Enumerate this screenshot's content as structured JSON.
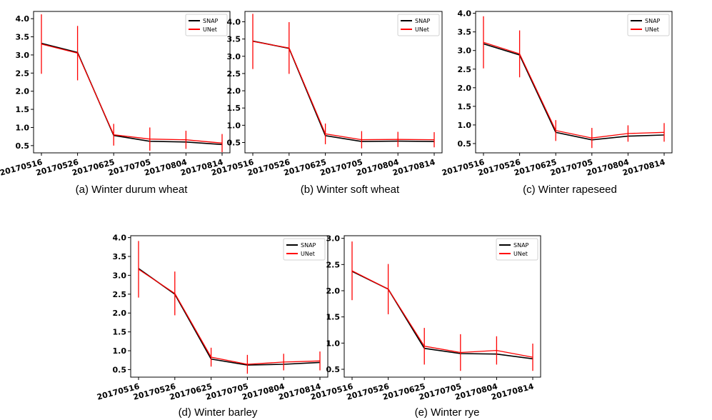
{
  "colors": {
    "snap": "#000000",
    "unet": "#ff0000"
  },
  "legend_labels": [
    "SNAP",
    "UNet"
  ],
  "chart_data": [
    {
      "type": "line",
      "caption": "(a) Winter durum wheat",
      "x": [
        "20170516",
        "20170526",
        "20170625",
        "20170705",
        "20170804",
        "20170814"
      ],
      "ylim": [
        0.3,
        4.2
      ],
      "yticks": [
        "0.5",
        "1.0",
        "1.5",
        "2.0",
        "2.5",
        "3.0",
        "3.5",
        "4.0"
      ],
      "legend": "top-right",
      "series": [
        {
          "name": "SNAP",
          "values": [
            3.32,
            3.07,
            0.78,
            0.62,
            0.6,
            0.53
          ]
        },
        {
          "name": "UNet",
          "values": [
            3.3,
            3.05,
            0.8,
            0.68,
            0.66,
            0.57
          ],
          "error": [
            0.82,
            0.75,
            0.3,
            0.32,
            0.25,
            0.25
          ]
        }
      ]
    },
    {
      "type": "line",
      "caption": "(b) Winter soft wheat",
      "x": [
        "20170516",
        "20170526",
        "20170625",
        "20170705",
        "20170804",
        "20170814"
      ],
      "ylim": [
        0.2,
        4.3
      ],
      "yticks": [
        "0.5",
        "1.0",
        "1.5",
        "2.0",
        "2.5",
        "3.0",
        "3.5",
        "4.0"
      ],
      "legend": "top-right",
      "series": [
        {
          "name": "SNAP",
          "values": [
            3.44,
            3.23,
            0.7,
            0.53,
            0.54,
            0.53
          ]
        },
        {
          "name": "UNet",
          "values": [
            3.43,
            3.24,
            0.75,
            0.58,
            0.59,
            0.58
          ],
          "error": [
            0.8,
            0.75,
            0.3,
            0.25,
            0.22,
            0.22
          ]
        }
      ]
    },
    {
      "type": "line",
      "caption": "(c) Winter rapeseed",
      "x": [
        "20170516",
        "20170526",
        "20170625",
        "20170705",
        "20170804",
        "20170814"
      ],
      "ylim": [
        0.25,
        4.05
      ],
      "yticks": [
        "0.5",
        "1.0",
        "1.5",
        "2.0",
        "2.5",
        "3.0",
        "3.5",
        "4.0"
      ],
      "legend": "top-right",
      "series": [
        {
          "name": "SNAP",
          "values": [
            3.18,
            2.88,
            0.8,
            0.6,
            0.7,
            0.73
          ]
        },
        {
          "name": "UNet",
          "values": [
            3.22,
            2.91,
            0.85,
            0.65,
            0.77,
            0.8
          ],
          "error": [
            0.7,
            0.63,
            0.28,
            0.27,
            0.22,
            0.25
          ]
        }
      ]
    },
    {
      "type": "line",
      "caption": "(d) Winter barley",
      "x": [
        "20170516",
        "20170526",
        "20170625",
        "20170705",
        "20170804",
        "20170814"
      ],
      "ylim": [
        0.3,
        4.05
      ],
      "yticks": [
        "0.5",
        "1.0",
        "1.5",
        "2.0",
        "2.5",
        "3.0",
        "3.5",
        "4.0"
      ],
      "legend": "top-right",
      "series": [
        {
          "name": "SNAP",
          "values": [
            3.18,
            2.5,
            0.78,
            0.62,
            0.64,
            0.69
          ]
        },
        {
          "name": "UNet",
          "values": [
            3.16,
            2.52,
            0.83,
            0.64,
            0.7,
            0.73
          ],
          "error": [
            0.75,
            0.58,
            0.25,
            0.25,
            0.22,
            0.25
          ]
        }
      ]
    },
    {
      "type": "line",
      "caption": "(e) Winter rye",
      "x": [
        "20170516",
        "20170526",
        "20170625",
        "20170705",
        "20170804",
        "20170814"
      ],
      "ylim": [
        0.35,
        3.05
      ],
      "yticks": [
        "0.5",
        "1.0",
        "1.5",
        "2.0",
        "2.5",
        "3.0"
      ],
      "legend": "top-right",
      "series": [
        {
          "name": "SNAP",
          "values": [
            2.37,
            2.03,
            0.9,
            0.8,
            0.79,
            0.7
          ]
        },
        {
          "name": "UNet",
          "values": [
            2.38,
            2.03,
            0.94,
            0.82,
            0.86,
            0.73
          ],
          "error": [
            0.56,
            0.48,
            0.35,
            0.35,
            0.27,
            0.26
          ]
        }
      ]
    }
  ]
}
